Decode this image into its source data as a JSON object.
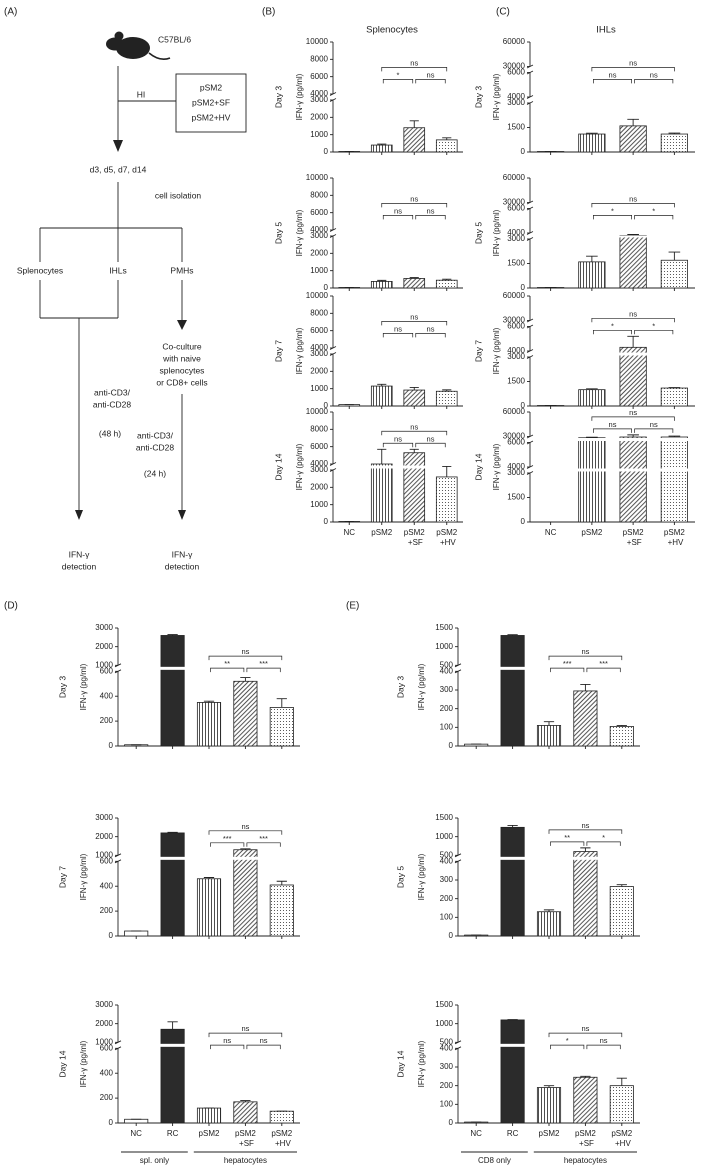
{
  "panels": [
    {
      "label": "(A)"
    },
    {
      "label": "(B)",
      "title": "Splenocytes"
    },
    {
      "label": "(C)",
      "title": "IHLs"
    },
    {
      "label": "(D)"
    },
    {
      "label": "(E)"
    }
  ],
  "diagram": {
    "strain": "C57BL/6",
    "route": "HI",
    "treatments": [
      "pSM2",
      "pSM2+SF",
      "pSM2+HV"
    ],
    "timepoints": "d3, d5, d7, d14",
    "step": "cell isolation",
    "cells": [
      "Splenocytes",
      "IHLs",
      "PMHs"
    ],
    "coculture": [
      "Co-culture",
      "with naive",
      "splenocytes",
      "or CD8+ cells"
    ],
    "left_stim": [
      "anti-CD3/",
      "anti-CD28"
    ],
    "left_time": "(48 h)",
    "right_stim": [
      "anti-CD3/",
      "anti-CD28"
    ],
    "right_time": "(24 h)",
    "left_readout": [
      "IFN-γ",
      "detection"
    ],
    "right_readout": [
      "IFN-γ",
      "detection"
    ]
  },
  "chart_data": [
    {
      "type": "bar",
      "row_label": "Day 3",
      "ylabel": "IFN-γ (pg/ml)",
      "ylim": [
        0,
        10000
      ],
      "ybreaks": [
        [
          3000,
          4000
        ]
      ],
      "yticks": [
        0,
        1000,
        2000,
        3000,
        4000,
        6000,
        8000,
        10000
      ],
      "values": [
        30,
        400,
        1400,
        700
      ],
      "errors": [
        0,
        60,
        400,
        120
      ],
      "bar_fills": [
        "none",
        "vertical",
        "diagonal",
        "dots"
      ],
      "comparisons": [
        {
          "from": 1,
          "to": 2,
          "label": "*"
        },
        {
          "from": 2,
          "to": 3,
          "label": "ns"
        },
        {
          "from": 1,
          "to": 3,
          "label": "ns"
        }
      ]
    },
    {
      "type": "bar",
      "row_label": "Day 5",
      "ylabel": "IFN-γ (pg/ml)",
      "ylim": [
        0,
        10000
      ],
      "ybreaks": [
        [
          3000,
          4000
        ]
      ],
      "yticks": [
        0,
        1000,
        2000,
        3000,
        4000,
        6000,
        8000,
        10000
      ],
      "values": [
        30,
        380,
        550,
        450
      ],
      "errors": [
        0,
        60,
        50,
        60
      ],
      "bar_fills": [
        "none",
        "vertical",
        "diagonal",
        "dots"
      ],
      "comparisons": [
        {
          "from": 1,
          "to": 2,
          "label": "ns"
        },
        {
          "from": 2,
          "to": 3,
          "label": "ns"
        },
        {
          "from": 1,
          "to": 3,
          "label": "ns"
        }
      ]
    },
    {
      "type": "bar",
      "row_label": "Day 7",
      "ylabel": "IFN-γ (pg/ml)",
      "ylim": [
        0,
        10000
      ],
      "ybreaks": [
        [
          3000,
          4000
        ]
      ],
      "yticks": [
        0,
        1000,
        2000,
        3000,
        4000,
        6000,
        8000,
        10000
      ],
      "values": [
        80,
        1150,
        920,
        850
      ],
      "errors": [
        0,
        100,
        150,
        80
      ],
      "bar_fills": [
        "none",
        "vertical",
        "diagonal",
        "dots"
      ],
      "comparisons": [
        {
          "from": 1,
          "to": 2,
          "label": "ns"
        },
        {
          "from": 2,
          "to": 3,
          "label": "ns"
        },
        {
          "from": 1,
          "to": 3,
          "label": "ns"
        }
      ]
    },
    {
      "type": "bar",
      "row_label": "Day 14",
      "ylabel": "IFN-γ (pg/ml)",
      "ylim": [
        0,
        10000
      ],
      "ybreaks": [
        [
          3000,
          4000
        ]
      ],
      "yticks": [
        0,
        1000,
        2000,
        3000,
        4000,
        6000,
        8000,
        10000
      ],
      "categories": [
        "NC",
        "pSM2",
        "pSM2\n+SF",
        "pSM2\n+HV"
      ],
      "values": [
        30,
        4000,
        5300,
        2600
      ],
      "errors": [
        0,
        1700,
        400,
        1000
      ],
      "bar_fills": [
        "none",
        "vertical",
        "diagonal",
        "dots"
      ],
      "comparisons": [
        {
          "from": 1,
          "to": 2,
          "label": "ns"
        },
        {
          "from": 2,
          "to": 3,
          "label": "ns"
        },
        {
          "from": 1,
          "to": 3,
          "label": "ns"
        }
      ]
    },
    {
      "type": "bar",
      "row_label": "Day 3",
      "ylabel": "IFN-γ (pg/ml)",
      "ylim": [
        0,
        60000
      ],
      "ybreaks": [
        [
          3000,
          4000
        ],
        [
          6000,
          30000
        ]
      ],
      "yticks": [
        0,
        1500,
        3000,
        4000,
        6000,
        30000,
        60000
      ],
      "values": [
        30,
        1100,
        1600,
        1100
      ],
      "errors": [
        0,
        50,
        400,
        60
      ],
      "bar_fills": [
        "none",
        "vertical",
        "diagonal",
        "dots"
      ],
      "comparisons": [
        {
          "from": 1,
          "to": 2,
          "label": "ns"
        },
        {
          "from": 2,
          "to": 3,
          "label": "ns"
        },
        {
          "from": 1,
          "to": 3,
          "label": "ns"
        }
      ]
    },
    {
      "type": "bar",
      "row_label": "Day 5",
      "ylabel": "IFN-γ (pg/ml)",
      "ylim": [
        0,
        60000
      ],
      "ybreaks": [
        [
          3000,
          4000
        ],
        [
          6000,
          30000
        ]
      ],
      "yticks": [
        0,
        1500,
        3000,
        4000,
        6000,
        30000,
        60000
      ],
      "values": [
        30,
        1600,
        3600,
        1700
      ],
      "errors": [
        0,
        350,
        150,
        500
      ],
      "bar_fills": [
        "none",
        "vertical",
        "diagonal",
        "dots"
      ],
      "comparisons": [
        {
          "from": 1,
          "to": 2,
          "label": "*"
        },
        {
          "from": 2,
          "to": 3,
          "label": "*"
        },
        {
          "from": 1,
          "to": 3,
          "label": "ns"
        }
      ]
    },
    {
      "type": "bar",
      "row_label": "Day 7",
      "ylabel": "IFN-γ (pg/ml)",
      "ylim": [
        0,
        60000
      ],
      "ybreaks": [
        [
          3000,
          4000
        ],
        [
          6000,
          30000
        ]
      ],
      "yticks": [
        0,
        1500,
        3000,
        4000,
        6000,
        30000,
        60000
      ],
      "values": [
        30,
        1000,
        4300,
        1100
      ],
      "errors": [
        0,
        50,
        900,
        30
      ],
      "bar_fills": [
        "none",
        "vertical",
        "diagonal",
        "dots"
      ],
      "comparisons": [
        {
          "from": 1,
          "to": 2,
          "label": "*"
        },
        {
          "from": 2,
          "to": 3,
          "label": "*"
        },
        {
          "from": 1,
          "to": 3,
          "label": "ns"
        }
      ]
    },
    {
      "type": "bar",
      "row_label": "Day 14",
      "ylabel": "IFN-γ (pg/ml)",
      "ylim": [
        0,
        60000
      ],
      "ybreaks": [
        [
          3000,
          4000
        ],
        [
          6000,
          30000
        ]
      ],
      "yticks": [
        0,
        1500,
        3000,
        4000,
        6000,
        30000,
        60000
      ],
      "categories": [
        "NC",
        "pSM2",
        "pSM2\n+SF",
        "pSM2\n+HV"
      ],
      "values": [
        0,
        25000,
        28000,
        28000
      ],
      "errors": [
        0,
        2000,
        4000,
        2500
      ],
      "bar_fills": [
        "none",
        "vertical",
        "diagonal",
        "dots"
      ],
      "comparisons": [
        {
          "from": 1,
          "to": 2,
          "label": "ns"
        },
        {
          "from": 2,
          "to": 3,
          "label": "ns"
        },
        {
          "from": 1,
          "to": 3,
          "label": "ns"
        }
      ]
    },
    {
      "type": "bar",
      "row_label": "Day 3",
      "ylabel": "IFN-γ (pg/ml)",
      "ylim": [
        0,
        3000
      ],
      "ybreaks": [
        [
          600,
          1000
        ]
      ],
      "yticks": [
        0,
        200,
        400,
        600,
        1000,
        2000,
        3000
      ],
      "values": [
        10,
        2600,
        350,
        520,
        310
      ],
      "errors": [
        0,
        50,
        10,
        30,
        70
      ],
      "bar_fills": [
        "none",
        "solid",
        "vertical",
        "diagonal",
        "dots"
      ],
      "comparisons": [
        {
          "from": 2,
          "to": 3,
          "label": "**"
        },
        {
          "from": 3,
          "to": 4,
          "label": "***"
        },
        {
          "from": 2,
          "to": 4,
          "label": "ns"
        }
      ]
    },
    {
      "type": "bar",
      "row_label": "Day 7",
      "ylabel": "IFN-γ (pg/ml)",
      "ylim": [
        0,
        3000
      ],
      "ybreaks": [
        [
          600,
          1000
        ]
      ],
      "yticks": [
        0,
        200,
        400,
        600,
        1000,
        2000,
        3000
      ],
      "values": [
        40,
        2200,
        460,
        1300,
        410
      ],
      "errors": [
        0,
        30,
        10,
        50,
        30
      ],
      "bar_fills": [
        "none",
        "solid",
        "vertical",
        "diagonal",
        "dots"
      ],
      "comparisons": [
        {
          "from": 2,
          "to": 3,
          "label": "***"
        },
        {
          "from": 3,
          "to": 4,
          "label": "***"
        },
        {
          "from": 2,
          "to": 4,
          "label": "ns"
        }
      ]
    },
    {
      "type": "bar",
      "row_label": "Day 14",
      "ylabel": "IFN-γ (pg/ml)",
      "ylim": [
        0,
        3000
      ],
      "ybreaks": [
        [
          600,
          1000
        ]
      ],
      "yticks": [
        0,
        200,
        400,
        600,
        1000,
        2000,
        3000
      ],
      "categories": [
        "NC",
        "RC",
        "pSM2",
        "pSM2\n+SF",
        "pSM2\n+HV"
      ],
      "groups": [
        {
          "label": "spl. only",
          "from": 0,
          "to": 1
        },
        {
          "label": "hepatocytes",
          "from": 2,
          "to": 4
        }
      ],
      "values": [
        30,
        1700,
        120,
        170,
        95
      ],
      "errors": [
        0,
        400,
        0,
        10,
        0
      ],
      "bar_fills": [
        "none",
        "solid",
        "vertical",
        "diagonal",
        "dots"
      ],
      "comparisons": [
        {
          "from": 2,
          "to": 3,
          "label": "ns"
        },
        {
          "from": 3,
          "to": 4,
          "label": "ns"
        },
        {
          "from": 2,
          "to": 4,
          "label": "ns"
        }
      ]
    },
    {
      "type": "bar",
      "row_label": "Day 3",
      "ylabel": "IFN-γ (pg/ml)",
      "ylim": [
        0,
        1500
      ],
      "ybreaks": [
        [
          400,
          500
        ]
      ],
      "yticks": [
        0,
        100,
        200,
        300,
        400,
        500,
        1000,
        1500
      ],
      "values": [
        10,
        1300,
        110,
        295,
        105
      ],
      "errors": [
        0,
        20,
        20,
        35,
        5
      ],
      "bar_fills": [
        "none",
        "solid",
        "vertical",
        "diagonal",
        "dots"
      ],
      "comparisons": [
        {
          "from": 2,
          "to": 3,
          "label": "***"
        },
        {
          "from": 3,
          "to": 4,
          "label": "***"
        },
        {
          "from": 2,
          "to": 4,
          "label": "ns"
        }
      ]
    },
    {
      "type": "bar",
      "row_label": "Day 5",
      "ylabel": "IFN-γ (pg/ml)",
      "ylim": [
        0,
        1500
      ],
      "ybreaks": [
        [
          400,
          500
        ]
      ],
      "yticks": [
        0,
        100,
        200,
        300,
        400,
        500,
        1000,
        1500
      ],
      "values": [
        5,
        1250,
        130,
        600,
        265
      ],
      "errors": [
        0,
        50,
        10,
        100,
        10
      ],
      "bar_fills": [
        "none",
        "solid",
        "vertical",
        "diagonal",
        "dots"
      ],
      "comparisons": [
        {
          "from": 2,
          "to": 3,
          "label": "**"
        },
        {
          "from": 3,
          "to": 4,
          "label": "*"
        },
        {
          "from": 2,
          "to": 4,
          "label": "ns"
        }
      ]
    },
    {
      "type": "bar",
      "row_label": "Day 14",
      "ylabel": "IFN-γ (pg/ml)",
      "ylim": [
        0,
        1500
      ],
      "ybreaks": [
        [
          400,
          500
        ]
      ],
      "yticks": [
        0,
        100,
        200,
        300,
        400,
        500,
        1000,
        1500
      ],
      "categories": [
        "NC",
        "RC",
        "pSM2",
        "pSM2\n+SF",
        "pSM2\n+HV"
      ],
      "groups": [
        {
          "label": "CD8 only",
          "from": 0,
          "to": 1
        },
        {
          "label": "hepatocytes",
          "from": 2,
          "to": 4
        }
      ],
      "values": [
        5,
        1100,
        190,
        245,
        200
      ],
      "errors": [
        0,
        10,
        10,
        5,
        40
      ],
      "bar_fills": [
        "none",
        "solid",
        "vertical",
        "diagonal",
        "dots"
      ],
      "comparisons": [
        {
          "from": 2,
          "to": 3,
          "label": "*"
        },
        {
          "from": 3,
          "to": 4,
          "label": "ns"
        },
        {
          "from": 2,
          "to": 4,
          "label": "ns"
        }
      ]
    }
  ]
}
